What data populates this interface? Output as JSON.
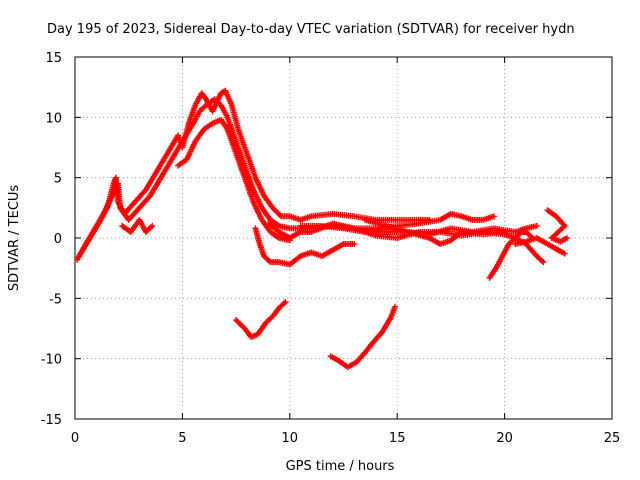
{
  "chart_data": {
    "type": "scatter",
    "title": "Day 195 of 2023, Sidereal Day-to-day VTEC variation (SDTVAR) for receiver hydn",
    "xlabel": "GPS time / hours",
    "ylabel": "SDTVAR / TECUs",
    "xlim": [
      0,
      25
    ],
    "ylim": [
      -15,
      15
    ],
    "xticks": [
      0,
      5,
      10,
      15,
      20,
      25
    ],
    "yticks": [
      -15,
      -10,
      -5,
      0,
      5,
      10,
      15
    ],
    "grid": true,
    "marker": "+",
    "color": "#ff0000",
    "series": [
      {
        "name": "trace-1",
        "points": [
          [
            0.1,
            -1.8
          ],
          [
            0.5,
            -0.5
          ],
          [
            1.0,
            1.0
          ],
          [
            1.5,
            2.5
          ],
          [
            1.8,
            4.5
          ],
          [
            1.9,
            5.0
          ],
          [
            2.0,
            3.0
          ],
          [
            2.3,
            2.0
          ],
          [
            2.8,
            3.0
          ],
          [
            3.3,
            4.0
          ],
          [
            3.8,
            5.5
          ],
          [
            4.3,
            7.0
          ],
          [
            4.8,
            8.5
          ],
          [
            5.0,
            7.5
          ],
          [
            5.3,
            9.5
          ],
          [
            5.6,
            11.0
          ],
          [
            5.9,
            12.0
          ],
          [
            6.1,
            11.5
          ],
          [
            6.4,
            10.5
          ],
          [
            6.8,
            12.0
          ],
          [
            7.0,
            12.2
          ],
          [
            7.3,
            11.0
          ],
          [
            7.6,
            9.0
          ],
          [
            8.0,
            7.0
          ],
          [
            8.4,
            5.0
          ],
          [
            8.8,
            3.5
          ],
          [
            9.2,
            2.5
          ],
          [
            9.6,
            1.8
          ],
          [
            10.0,
            1.8
          ],
          [
            10.5,
            1.5
          ],
          [
            11.0,
            1.8
          ],
          [
            12.0,
            2.0
          ],
          [
            13.0,
            1.8
          ],
          [
            14.0,
            1.5
          ],
          [
            15.0,
            1.5
          ],
          [
            16.0,
            1.5
          ],
          [
            16.5,
            1.5
          ]
        ]
      },
      {
        "name": "trace-2",
        "points": [
          [
            0.2,
            -1.5
          ],
          [
            0.7,
            0.0
          ],
          [
            1.2,
            1.5
          ],
          [
            1.6,
            3.0
          ],
          [
            2.0,
            4.5
          ],
          [
            2.1,
            2.5
          ],
          [
            2.5,
            1.5
          ],
          [
            3.0,
            2.5
          ],
          [
            3.5,
            3.5
          ],
          [
            4.0,
            5.0
          ],
          [
            4.5,
            6.5
          ],
          [
            5.0,
            8.0
          ],
          [
            5.5,
            9.5
          ],
          [
            5.8,
            10.5
          ],
          [
            6.1,
            11.0
          ],
          [
            6.5,
            11.5
          ],
          [
            6.8,
            11.0
          ],
          [
            7.1,
            10.0
          ],
          [
            7.5,
            8.0
          ],
          [
            7.9,
            6.0
          ],
          [
            8.3,
            4.0
          ],
          [
            8.7,
            2.5
          ],
          [
            9.1,
            1.5
          ],
          [
            9.5,
            1.0
          ],
          [
            10.0,
            0.8
          ],
          [
            11.0,
            0.8
          ],
          [
            12.0,
            1.0
          ],
          [
            13.0,
            0.8
          ],
          [
            14.0,
            0.8
          ],
          [
            15.0,
            1.0
          ],
          [
            16.0,
            1.2
          ],
          [
            17.0,
            1.5
          ],
          [
            17.5,
            2.0
          ],
          [
            18.0,
            1.8
          ],
          [
            18.5,
            1.5
          ],
          [
            19.0,
            1.5
          ],
          [
            19.5,
            1.8
          ]
        ]
      },
      {
        "name": "trace-3",
        "points": [
          [
            2.2,
            1.0
          ],
          [
            2.6,
            0.5
          ],
          [
            3.0,
            1.5
          ],
          [
            3.3,
            0.5
          ],
          [
            3.6,
            1.0
          ]
        ]
      },
      {
        "name": "trace-4",
        "points": [
          [
            4.8,
            6.0
          ],
          [
            5.2,
            6.5
          ],
          [
            5.6,
            8.0
          ],
          [
            6.0,
            9.0
          ],
          [
            6.4,
            9.5
          ],
          [
            6.8,
            9.8
          ],
          [
            7.1,
            9.0
          ],
          [
            7.5,
            7.0
          ],
          [
            7.9,
            5.0
          ],
          [
            8.3,
            3.0
          ],
          [
            8.7,
            1.5
          ],
          [
            9.1,
            0.5
          ],
          [
            9.5,
            0.0
          ],
          [
            10.0,
            -0.2
          ]
        ]
      },
      {
        "name": "trace-5",
        "points": [
          [
            8.4,
            0.8
          ],
          [
            8.6,
            -0.5
          ],
          [
            8.8,
            -1.5
          ],
          [
            9.1,
            -2.0
          ],
          [
            9.5,
            -2.0
          ],
          [
            10.0,
            -2.2
          ],
          [
            10.5,
            -1.5
          ],
          [
            11.0,
            -1.2
          ],
          [
            11.5,
            -1.5
          ],
          [
            12.0,
            -1.0
          ],
          [
            12.5,
            -0.5
          ],
          [
            13.0,
            -0.5
          ]
        ]
      },
      {
        "name": "trace-6",
        "points": [
          [
            9.0,
            1.2
          ],
          [
            9.5,
            0.5
          ],
          [
            10.0,
            0.0
          ],
          [
            10.5,
            0.5
          ],
          [
            11.0,
            0.5
          ],
          [
            12.0,
            1.2
          ],
          [
            13.0,
            0.8
          ],
          [
            14.0,
            0.2
          ],
          [
            15.0,
            0.0
          ],
          [
            16.0,
            0.5
          ],
          [
            17.0,
            0.5
          ],
          [
            18.0,
            0.2
          ],
          [
            19.0,
            0.5
          ],
          [
            20.0,
            0.3
          ],
          [
            20.5,
            0.0
          ],
          [
            21.0,
            -0.5
          ],
          [
            21.5,
            -1.5
          ],
          [
            21.8,
            -2.0
          ]
        ]
      },
      {
        "name": "trace-7",
        "points": [
          [
            10.5,
            1.0
          ],
          [
            11.5,
            1.0
          ],
          [
            12.5,
            0.8
          ],
          [
            13.5,
            0.5
          ],
          [
            14.5,
            0.5
          ],
          [
            15.5,
            0.5
          ],
          [
            16.5,
            0.3
          ],
          [
            17.5,
            0.8
          ],
          [
            18.5,
            0.5
          ],
          [
            19.5,
            0.8
          ],
          [
            20.5,
            0.5
          ],
          [
            21.0,
            0.8
          ],
          [
            21.5,
            1.0
          ]
        ]
      },
      {
        "name": "trace-8",
        "points": [
          [
            13.5,
            1.5
          ],
          [
            14.5,
            1.0
          ],
          [
            15.5,
            0.5
          ],
          [
            16.5,
            0.0
          ],
          [
            17.0,
            -0.5
          ],
          [
            17.5,
            -0.2
          ],
          [
            18.0,
            0.5
          ],
          [
            19.0,
            0.3
          ],
          [
            20.0,
            0.5
          ]
        ]
      },
      {
        "name": "trace-9",
        "points": [
          [
            19.3,
            -3.3
          ],
          [
            19.6,
            -2.5
          ],
          [
            19.9,
            -1.5
          ],
          [
            20.2,
            -0.5
          ],
          [
            20.5,
            0.0
          ],
          [
            20.8,
            0.5
          ],
          [
            21.0,
            0.5
          ],
          [
            21.3,
            0.0
          ]
        ]
      },
      {
        "name": "trace-10",
        "points": [
          [
            20.5,
            -0.5
          ],
          [
            21.0,
            -0.3
          ],
          [
            21.5,
            0.0
          ],
          [
            22.0,
            -0.5
          ],
          [
            22.5,
            -1.0
          ],
          [
            22.8,
            -1.3
          ]
        ]
      },
      {
        "name": "trace-11",
        "points": [
          [
            22.0,
            2.3
          ],
          [
            22.4,
            1.8
          ],
          [
            22.8,
            1.0
          ],
          [
            22.5,
            0.5
          ],
          [
            22.2,
            0.0
          ],
          [
            22.6,
            -0.3
          ],
          [
            22.9,
            0.0
          ]
        ]
      },
      {
        "name": "trace-12",
        "points": [
          [
            7.5,
            -6.8
          ],
          [
            7.9,
            -7.5
          ],
          [
            8.2,
            -8.2
          ],
          [
            8.5,
            -8.0
          ],
          [
            8.9,
            -7.0
          ],
          [
            9.2,
            -6.5
          ],
          [
            9.5,
            -5.8
          ],
          [
            9.8,
            -5.3
          ]
        ]
      },
      {
        "name": "trace-13",
        "points": [
          [
            11.9,
            -9.8
          ],
          [
            12.3,
            -10.2
          ],
          [
            12.7,
            -10.7
          ],
          [
            13.1,
            -10.3
          ],
          [
            13.5,
            -9.5
          ],
          [
            13.9,
            -8.6
          ],
          [
            14.3,
            -7.8
          ],
          [
            14.7,
            -6.6
          ],
          [
            14.9,
            -5.7
          ]
        ]
      }
    ]
  }
}
